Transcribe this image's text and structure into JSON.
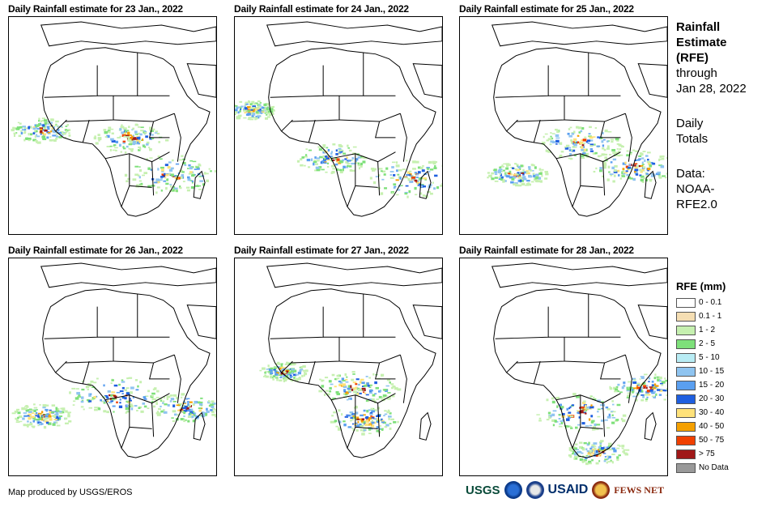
{
  "panels": [
    {
      "title": "Daily Rainfall estimate for 23 Jan., 2022"
    },
    {
      "title": "Daily Rainfall estimate for 24 Jan., 2022"
    },
    {
      "title": "Daily Rainfall estimate for 25 Jan., 2022"
    },
    {
      "title": "Daily Rainfall estimate for 26 Jan., 2022"
    },
    {
      "title": "Daily Rainfall estimate for 27 Jan., 2022"
    },
    {
      "title": "Daily Rainfall estimate for 28 Jan., 2022"
    }
  ],
  "side": {
    "heading_line1": "Rainfall",
    "heading_line2": "Estimate",
    "heading_line3": "(RFE)",
    "through": "through",
    "date": "Jan 28, 2022",
    "daily1": "Daily",
    "daily2": "Totals",
    "data1": "Data:",
    "data2": "NOAA-",
    "data3": "RFE2.0"
  },
  "legend": {
    "title": "RFE (mm)",
    "items": [
      {
        "label": "0 - 0.1",
        "color": "#ffffff"
      },
      {
        "label": "0.1 - 1",
        "color": "#f5deb3"
      },
      {
        "label": "1 - 2",
        "color": "#c6f0b0"
      },
      {
        "label": "2 - 5",
        "color": "#7ee07a"
      },
      {
        "label": "5 - 10",
        "color": "#b8ecf4"
      },
      {
        "label": "10 - 15",
        "color": "#8fc4f0"
      },
      {
        "label": "15 - 20",
        "color": "#5a9ff0"
      },
      {
        "label": "20 - 30",
        "color": "#1f5fe0"
      },
      {
        "label": "30 - 40",
        "color": "#ffe27a"
      },
      {
        "label": "40 - 50",
        "color": "#f5a000"
      },
      {
        "label": "50 - 75",
        "color": "#f04000"
      },
      {
        "label": "> 75",
        "color": "#a01818"
      },
      {
        "label": "No Data",
        "color": "#999999"
      }
    ]
  },
  "credit": "Map produced by USGS/EROS",
  "logos": {
    "usgs": "USGS",
    "usaid": "USAID",
    "fews": "FEWS NET"
  }
}
